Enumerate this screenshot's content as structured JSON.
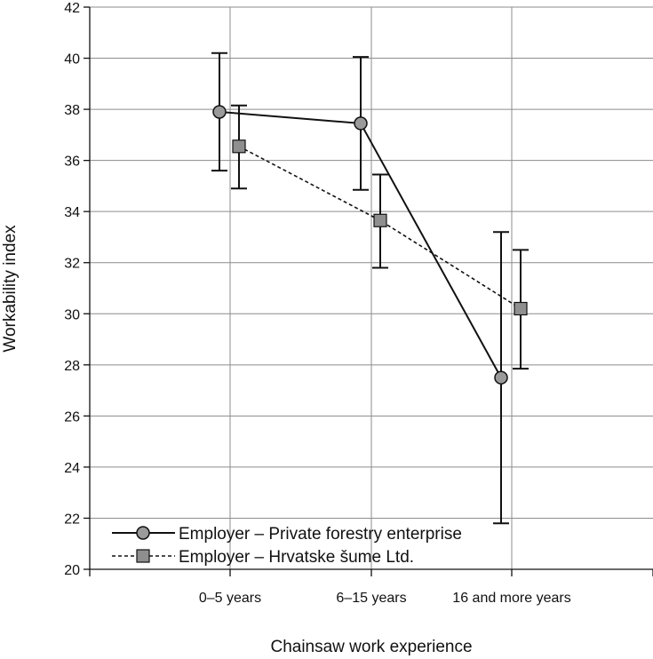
{
  "chart_data": {
    "type": "line",
    "categories": [
      "0–5 years",
      "6–15 years",
      "16 and more years"
    ],
    "xlabel": "Chainsaw work experience",
    "ylabel": "Workability index",
    "ylim": [
      20,
      42
    ],
    "yticks": [
      20,
      22,
      24,
      26,
      28,
      30,
      32,
      34,
      36,
      38,
      40,
      42
    ],
    "grid": true,
    "legend_position": "bottom-left",
    "series": [
      {
        "name": "Employer – Private forestry enterprise",
        "marker": "circle",
        "line_style": "solid",
        "values": [
          37.9,
          37.45,
          27.5
        ],
        "error_low": [
          35.6,
          34.85,
          21.8
        ],
        "error_high": [
          40.2,
          40.05,
          33.2
        ]
      },
      {
        "name": "Employer – Hrvatske šume Ltd.",
        "marker": "square",
        "line_style": "dashed",
        "values": [
          36.55,
          33.65,
          30.2
        ],
        "error_low": [
          34.9,
          31.8,
          27.85
        ],
        "error_high": [
          38.15,
          35.45,
          32.5
        ]
      }
    ],
    "colors": {
      "line": "#111111",
      "grid": "#8c8c8c",
      "circle_fill": "#9a9a9a",
      "square_fill": "#8f8f8f"
    }
  }
}
